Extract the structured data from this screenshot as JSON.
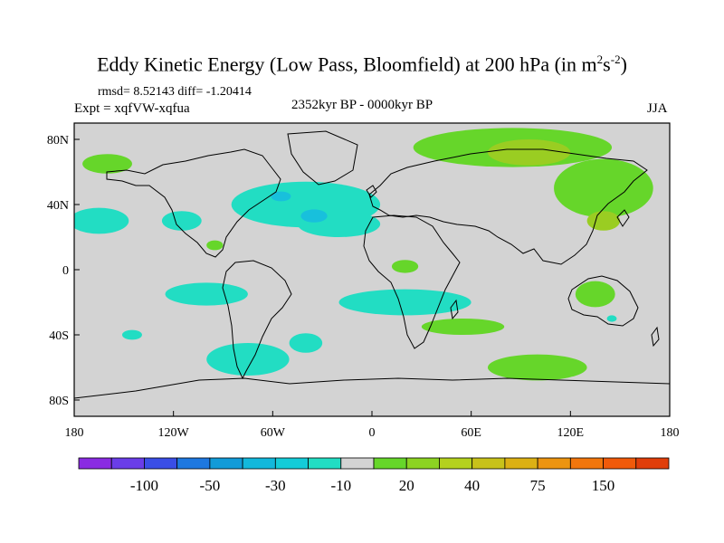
{
  "title": {
    "main": "Eddy Kinetic Energy (Low Pass, Bloomfield) at 200 hPa (in m",
    "sup1": "2",
    "mid": "s",
    "sup2": "-2",
    "end": ")"
  },
  "stats_text": "rmsd= 8.52143 diff= -1.20414",
  "experiment_text": "Expt = xqfVW-xqfua",
  "period_text": "2352kyr BP - 0000kyr BP",
  "season_text": "JJA",
  "colors": {
    "background_map": "#d3d3d3",
    "cyan_anomaly": "#22ddc3",
    "blue_anomaly": "#18c0dc",
    "green_anomaly": "#66d62a",
    "yellow_green_anomaly": "#9acd22",
    "coastline": "#000000"
  },
  "chart_data": {
    "type": "heatmap",
    "title": "Eddy Kinetic Energy (Low Pass, Bloomfield) at 200 hPa (in m^2 s^-2)",
    "xlim": [
      -180,
      180
    ],
    "ylim": [
      -90,
      90
    ],
    "x_ticks": [
      {
        "value": -180,
        "label": "180"
      },
      {
        "value": -120,
        "label": "120W"
      },
      {
        "value": -60,
        "label": "60W"
      },
      {
        "value": 0,
        "label": "0"
      },
      {
        "value": 60,
        "label": "60E"
      },
      {
        "value": 120,
        "label": "120E"
      },
      {
        "value": 180,
        "label": "180"
      }
    ],
    "y_ticks": [
      {
        "value": 80,
        "label": "80N"
      },
      {
        "value": 40,
        "label": "40N"
      },
      {
        "value": 0,
        "label": "0"
      },
      {
        "value": -40,
        "label": "40S"
      },
      {
        "value": -80,
        "label": "80S"
      }
    ],
    "colorbar": {
      "colors": [
        "#8a2be2",
        "#6a3de8",
        "#3a4ee6",
        "#1e78e0",
        "#129bd8",
        "#12b8dc",
        "#14ccd8",
        "#22ddc3",
        "#d3d3d3",
        "#66d62a",
        "#8cd322",
        "#b4d11e",
        "#c8c21a",
        "#dcb014",
        "#ec9410",
        "#f2760c",
        "#f05a0a",
        "#e03e0a"
      ],
      "labels": [
        {
          "after_box": 2,
          "text": "-100"
        },
        {
          "after_box": 4,
          "text": "-50"
        },
        {
          "after_box": 6,
          "text": "-30"
        },
        {
          "after_box": 8,
          "text": "-10"
        },
        {
          "after_box": 10,
          "text": "20"
        },
        {
          "after_box": 12,
          "text": "40"
        },
        {
          "after_box": 14,
          "text": "75"
        },
        {
          "after_box": 16,
          "text": "150"
        }
      ]
    },
    "anomaly_regions": [
      {
        "category": "cyan",
        "lon": -165,
        "lat": 30,
        "rx": 18,
        "ry": 8
      },
      {
        "category": "cyan",
        "lon": -115,
        "lat": 30,
        "rx": 12,
        "ry": 6
      },
      {
        "category": "cyan",
        "lon": -40,
        "lat": 40,
        "rx": 45,
        "ry": 14
      },
      {
        "category": "cyan",
        "lon": -20,
        "lat": 28,
        "rx": 25,
        "ry": 8
      },
      {
        "category": "cyan",
        "lon": -100,
        "lat": -15,
        "rx": 25,
        "ry": 7
      },
      {
        "category": "cyan",
        "lon": 20,
        "lat": -20,
        "rx": 40,
        "ry": 8
      },
      {
        "category": "cyan",
        "lon": -75,
        "lat": -55,
        "rx": 25,
        "ry": 10
      },
      {
        "category": "cyan",
        "lon": -40,
        "lat": -45,
        "rx": 10,
        "ry": 6
      },
      {
        "category": "cyan",
        "lon": -145,
        "lat": -40,
        "rx": 6,
        "ry": 3
      },
      {
        "category": "cyan",
        "lon": 145,
        "lat": -30,
        "rx": 3,
        "ry": 2
      },
      {
        "category": "blue",
        "lon": -55,
        "lat": 45,
        "rx": 6,
        "ry": 3
      },
      {
        "category": "blue",
        "lon": -35,
        "lat": 33,
        "rx": 8,
        "ry": 4
      },
      {
        "category": "green",
        "lon": 85,
        "lat": 75,
        "rx": 60,
        "ry": 12
      },
      {
        "category": "green",
        "lon": 140,
        "lat": 50,
        "rx": 30,
        "ry": 18
      },
      {
        "category": "green",
        "lon": -160,
        "lat": 65,
        "rx": 15,
        "ry": 6
      },
      {
        "category": "green",
        "lon": 55,
        "lat": -35,
        "rx": 25,
        "ry": 5
      },
      {
        "category": "green",
        "lon": 135,
        "lat": -15,
        "rx": 12,
        "ry": 8
      },
      {
        "category": "green",
        "lon": 100,
        "lat": -60,
        "rx": 30,
        "ry": 8
      },
      {
        "category": "green",
        "lon": -95,
        "lat": 15,
        "rx": 5,
        "ry": 3
      },
      {
        "category": "green",
        "lon": 20,
        "lat": 2,
        "rx": 8,
        "ry": 4
      },
      {
        "category": "yellow_green",
        "lon": 95,
        "lat": 72,
        "rx": 25,
        "ry": 8
      },
      {
        "category": "yellow_green",
        "lon": 140,
        "lat": 30,
        "rx": 10,
        "ry": 6
      }
    ]
  }
}
